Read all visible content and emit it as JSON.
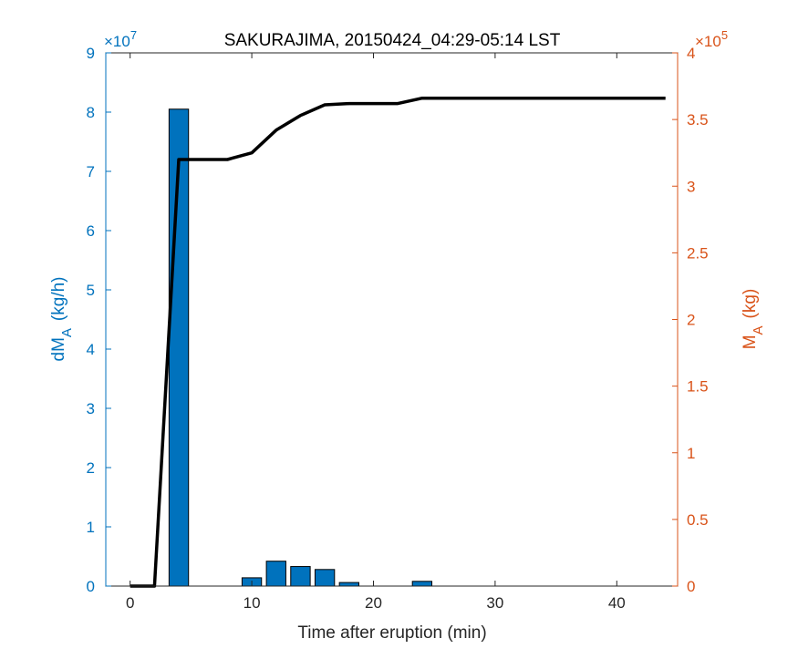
{
  "chart_data": {
    "type": "bar+line",
    "title": "SAKURAJIMA, 20150424_04:29-05:14 LST",
    "xlabel": "Time after eruption (min)",
    "xlim": [
      -2,
      45
    ],
    "xticks": [
      "0",
      "10",
      "20",
      "30",
      "40"
    ],
    "xtick_values": [
      0,
      10,
      20,
      30,
      40
    ],
    "y_left": {
      "label_main": "dM",
      "label_sub": "A",
      "label_unit": "(kg/h)",
      "exponent_base": "×10",
      "exponent_power": "7",
      "color": "#0072BD",
      "ylim": [
        0,
        9
      ],
      "ticks": [
        "0",
        "1",
        "2",
        "3",
        "4",
        "5",
        "6",
        "7",
        "8",
        "9"
      ],
      "tick_values": [
        0,
        1,
        2,
        3,
        4,
        5,
        6,
        7,
        8,
        9
      ]
    },
    "y_right": {
      "label_main": "M",
      "label_sub": "A",
      "label_unit": "(kg)",
      "exponent_base": "×10",
      "exponent_power": "5",
      "color": "#D95319",
      "ylim": [
        0,
        4
      ],
      "ticks": [
        "0",
        "0.5",
        "1",
        "1.5",
        "2",
        "2.5",
        "3",
        "3.5",
        "4"
      ],
      "tick_values": [
        0,
        0.5,
        1,
        1.5,
        2,
        2.5,
        3,
        3.5,
        4
      ]
    },
    "bars": {
      "axis": "left",
      "color": "#0072BD",
      "x": [
        0,
        2,
        4,
        6,
        8,
        10,
        12,
        14,
        16,
        18,
        20,
        22,
        24,
        26,
        28,
        30,
        32,
        34,
        36,
        38,
        40,
        42,
        44
      ],
      "values": [
        0,
        0,
        8.05,
        0,
        0,
        0.14,
        0.42,
        0.33,
        0.28,
        0.06,
        0,
        0,
        0.08,
        0,
        0,
        0,
        0,
        0,
        0,
        0,
        0,
        0,
        0
      ]
    },
    "line": {
      "axis": "right",
      "color": "#000000",
      "x": [
        0,
        2,
        4,
        6,
        8,
        10,
        12,
        14,
        16,
        18,
        20,
        22,
        24,
        26,
        28,
        30,
        32,
        34,
        36,
        38,
        40,
        42,
        44
      ],
      "values": [
        0,
        0,
        3.2,
        3.2,
        3.2,
        3.25,
        3.42,
        3.53,
        3.61,
        3.62,
        3.62,
        3.62,
        3.66,
        3.66,
        3.66,
        3.66,
        3.66,
        3.66,
        3.66,
        3.66,
        3.66,
        3.66,
        3.66
      ]
    }
  }
}
